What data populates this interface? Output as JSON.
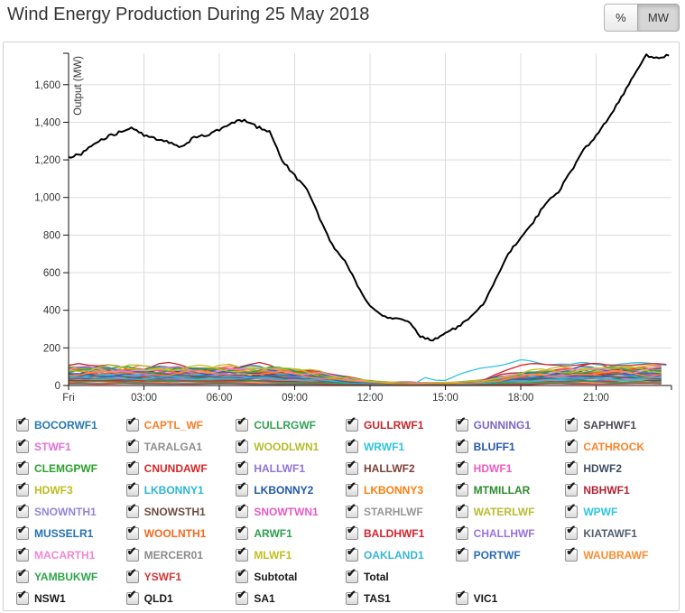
{
  "header": {
    "title": "Wind Energy Production During 25 May 2018",
    "unit_buttons": [
      {
        "label": "%",
        "active": false
      },
      {
        "label": "MW",
        "active": true
      }
    ]
  },
  "chart_data": {
    "type": "line",
    "title": "Wind Energy Production During 25 May 2018",
    "ylabel": "Output (MW)",
    "ylim": [
      0,
      1767
    ],
    "yticks": [
      0,
      200,
      400,
      600,
      800,
      1000,
      1200,
      1400,
      1600
    ],
    "xticks": [
      {
        "h": 0,
        "label": "Fri"
      },
      {
        "h": 3,
        "label": "03:00"
      },
      {
        "h": 6,
        "label": "06:00"
      },
      {
        "h": 9,
        "label": "09:00"
      },
      {
        "h": 12,
        "label": "12:00"
      },
      {
        "h": 15,
        "label": "15:00"
      },
      {
        "h": 18,
        "label": "18:00"
      },
      {
        "h": 21,
        "label": "21:00"
      }
    ],
    "grid": true,
    "axis_color": "#111111",
    "grid_color": "#dcdcdc",
    "total_series": {
      "name": "Total",
      "color": "#000000",
      "x_hours": [
        0,
        0.5,
        1,
        1.5,
        2,
        2.5,
        3,
        3.5,
        4,
        4.5,
        5,
        5.5,
        6,
        6.5,
        7,
        7.5,
        8,
        8.5,
        9,
        9.5,
        10,
        10.5,
        11,
        11.5,
        12,
        12.5,
        13,
        13.5,
        14,
        14.5,
        15,
        15.5,
        16,
        16.5,
        17,
        17.5,
        18,
        18.5,
        19,
        19.5,
        20,
        20.5,
        21,
        21.5,
        22,
        22.5,
        23,
        23.5,
        23.9
      ],
      "values_mw": [
        1215,
        1230,
        1290,
        1320,
        1345,
        1375,
        1330,
        1310,
        1295,
        1268,
        1320,
        1330,
        1360,
        1400,
        1410,
        1375,
        1350,
        1200,
        1115,
        1040,
        890,
        745,
        660,
        535,
        420,
        365,
        360,
        345,
        260,
        240,
        280,
        310,
        360,
        430,
        560,
        700,
        790,
        870,
        970,
        1030,
        1140,
        1250,
        1330,
        1420,
        1530,
        1650,
        1755,
        1745,
        1755
      ]
    },
    "band_profile_default": {
      "x_hours": [
        0,
        3,
        6,
        8,
        9,
        10,
        10.5,
        11,
        11.5,
        12,
        12.5,
        13,
        14,
        15,
        16,
        16.5,
        17,
        17.5,
        18,
        18.5,
        19,
        20,
        21,
        22,
        23.9
      ],
      "factors": [
        1,
        1,
        1,
        0.98,
        0.9,
        0.7,
        0.55,
        0.42,
        0.33,
        0.25,
        0.2,
        0.17,
        0.14,
        0.15,
        0.22,
        0.3,
        0.42,
        0.55,
        0.68,
        0.78,
        0.85,
        0.92,
        0.96,
        0.98,
        1
      ]
    },
    "farm_series": [
      {
        "name": "BOCORWF1",
        "peak_mw": 88
      },
      {
        "name": "CAPTL_WF",
        "peak_mw": 96
      },
      {
        "name": "CULLRGWF",
        "peak_mw": 24
      },
      {
        "name": "GULLRWF1",
        "peak_mw": 112
      },
      {
        "name": "GUNNING1",
        "peak_mw": 34
      },
      {
        "name": "SAPHWF1",
        "peak_mw": 58
      },
      {
        "name": "STWF1",
        "peak_mw": 44
      },
      {
        "name": "TARALGA1",
        "peak_mw": 80
      },
      {
        "name": "WOODLWN1",
        "peak_mw": 95
      },
      {
        "name": "WRWF1",
        "x_hours": [
          0,
          2,
          4,
          6,
          8,
          10,
          11,
          12,
          13,
          13.8,
          14.2,
          14.6,
          15,
          15.5,
          16,
          16.5,
          17,
          17.5,
          18,
          18.4,
          19,
          19.5,
          20,
          20.5,
          21,
          22,
          23,
          23.9
        ],
        "values_mw": [
          8,
          10,
          6,
          8,
          5,
          4,
          6,
          8,
          6,
          12,
          42,
          30,
          28,
          55,
          75,
          95,
          108,
          118,
          131,
          125,
          114,
          120,
          112,
          118,
          110,
          118,
          115,
          112
        ]
      },
      {
        "name": "BLUFF1",
        "peak_mw": 28
      },
      {
        "name": "CATHROCK",
        "peak_mw": 54
      },
      {
        "name": "CLEMGPWF",
        "peak_mw": 40
      },
      {
        "name": "CNUNDAWF",
        "peak_mw": 30
      },
      {
        "name": "HALLWF1",
        "peak_mw": 72
      },
      {
        "name": "HALLWF2",
        "peak_mw": 58
      },
      {
        "name": "HDWF1",
        "peak_mw": 86
      },
      {
        "name": "HDWF2",
        "peak_mw": 84
      },
      {
        "name": "HDWF3",
        "peak_mw": 90
      },
      {
        "name": "LKBONNY1",
        "peak_mw": 50
      },
      {
        "name": "LKBONNY2",
        "peak_mw": 68
      },
      {
        "name": "LKBONNY3",
        "peak_mw": 20
      },
      {
        "name": "MTMILLAR",
        "peak_mw": 44
      },
      {
        "name": "NBHWF1",
        "peak_mw": 62
      },
      {
        "name": "SNOWNTH1",
        "peak_mw": 76
      },
      {
        "name": "SNOWSTH1",
        "peak_mw": 70
      },
      {
        "name": "SNOWTWN1",
        "peak_mw": 82
      },
      {
        "name": "STARHLWF",
        "peak_mw": 34
      },
      {
        "name": "WATERLWF",
        "peak_mw": 104
      },
      {
        "name": "WPWF",
        "peak_mw": 56
      },
      {
        "name": "MUSSELR1",
        "peak_mw": 98
      },
      {
        "name": "WOOLNTH1",
        "peak_mw": 85
      },
      {
        "name": "ARWF1",
        "peak_mw": 94
      },
      {
        "name": "BALDHWF1",
        "x_hours": [
          0,
          2,
          4,
          6,
          8,
          9,
          10,
          11,
          12,
          13,
          14,
          15,
          16,
          16.5,
          17,
          17.5,
          18,
          18.5,
          19,
          19.5,
          20,
          21,
          21.5,
          22,
          23,
          23.9
        ],
        "values_mw": [
          25,
          28,
          22,
          26,
          24,
          20,
          12,
          6,
          4,
          3,
          8,
          6,
          10,
          25,
          60,
          90,
          108,
          112,
          108,
          112,
          110,
          112,
          108,
          112,
          110,
          112
        ]
      },
      {
        "name": "CHALLHWF",
        "peak_mw": 52
      },
      {
        "name": "KIATAWF1",
        "peak_mw": 46
      },
      {
        "name": "MACARTH1",
        "peak_mw": 93
      },
      {
        "name": "MERCER01",
        "peak_mw": 14
      },
      {
        "name": "MLWF1",
        "peak_mw": 100
      },
      {
        "name": "OAKLAND1",
        "peak_mw": 42
      },
      {
        "name": "PORTWF",
        "peak_mw": 64
      },
      {
        "name": "WAUBRAWF",
        "peak_mw": 73
      },
      {
        "name": "YAMBUKWF",
        "peak_mw": 22
      },
      {
        "name": "YSWF1",
        "peak_mw": 10
      }
    ]
  },
  "legend": {
    "items": [
      {
        "label": "BOCORWF1",
        "color": "#2577b5",
        "checked": true
      },
      {
        "label": "CAPTL_WF",
        "color": "#fb7d28",
        "checked": true
      },
      {
        "label": "CULLRGWF",
        "color": "#31a354",
        "checked": true
      },
      {
        "label": "GULLRWF1",
        "color": "#c9252d",
        "checked": true
      },
      {
        "label": "GUNNING1",
        "color": "#7a65c8",
        "checked": true
      },
      {
        "label": "SAPHWF1",
        "color": "#4d4a57",
        "checked": true
      },
      {
        "label": "STWF1",
        "color": "#e26fd8",
        "checked": true
      },
      {
        "label": "TARALGA1",
        "color": "#8e8e8e",
        "checked": true
      },
      {
        "label": "WOODLWN1",
        "color": "#b3bd2d",
        "checked": true
      },
      {
        "label": "WRWF1",
        "color": "#32c3e0",
        "checked": true
      },
      {
        "label": "BLUFF1",
        "color": "#2456a8",
        "checked": true
      },
      {
        "label": "CATHROCK",
        "color": "#fd8329",
        "checked": true
      },
      {
        "label": "CLEMGPWF",
        "color": "#2ca02c",
        "checked": true
      },
      {
        "label": "CNUNDAWF",
        "color": "#d62728",
        "checked": true
      },
      {
        "label": "HALLWF1",
        "color": "#8f75d8",
        "checked": true
      },
      {
        "label": "HALLWF2",
        "color": "#7b4138",
        "checked": true
      },
      {
        "label": "HDWF1",
        "color": "#ef59c2",
        "checked": true
      },
      {
        "label": "HDWF2",
        "color": "#3f4e63",
        "checked": true
      },
      {
        "label": "HDWF3",
        "color": "#bcbd22",
        "checked": true
      },
      {
        "label": "LKBONNY1",
        "color": "#2ab6d6",
        "checked": true
      },
      {
        "label": "LKBONNY2",
        "color": "#2258a6",
        "checked": true
      },
      {
        "label": "LKBONNY3",
        "color": "#ff7f0e",
        "checked": true
      },
      {
        "label": "MTMILLAR",
        "color": "#2e8b2e",
        "checked": true
      },
      {
        "label": "NBHWF1",
        "color": "#b22234",
        "checked": true
      },
      {
        "label": "SNOWNTH1",
        "color": "#9384de",
        "checked": true
      },
      {
        "label": "SNOWSTH1",
        "color": "#6e4b3f",
        "checked": true
      },
      {
        "label": "SNOWTWN1",
        "color": "#e75bc6",
        "checked": true
      },
      {
        "label": "STARHLWF",
        "color": "#979797",
        "checked": true
      },
      {
        "label": "WATERLWF",
        "color": "#b7bd30",
        "checked": true
      },
      {
        "label": "WPWF",
        "color": "#2fc4e4",
        "checked": true
      },
      {
        "label": "MUSSELR1",
        "color": "#2272b2",
        "checked": true
      },
      {
        "label": "WOOLNTH1",
        "color": "#f4691e",
        "checked": true
      },
      {
        "label": "ARWF1",
        "color": "#2f9e4f",
        "checked": true
      },
      {
        "label": "BALDHWF1",
        "color": "#d8232e",
        "checked": true
      },
      {
        "label": "CHALLHWF",
        "color": "#9673e3",
        "checked": true
      },
      {
        "label": "KIATAWF1",
        "color": "#525f70",
        "checked": true
      },
      {
        "label": "MACARTH1",
        "color": "#f287d2",
        "checked": true
      },
      {
        "label": "MERCER01",
        "color": "#8b8b8b",
        "checked": true
      },
      {
        "label": "MLWF1",
        "color": "#c0c020",
        "checked": true
      },
      {
        "label": "OAKLAND1",
        "color": "#38b6d8",
        "checked": true
      },
      {
        "label": "PORTWF",
        "color": "#2c6cb3",
        "checked": true
      },
      {
        "label": "WAUBRAWF",
        "color": "#fd8b2f",
        "checked": true
      },
      {
        "label": "YAMBUKWF",
        "color": "#2ea44b",
        "checked": true
      },
      {
        "label": "YSWF1",
        "color": "#d63434",
        "checked": true
      },
      {
        "label": "Subtotal",
        "color": "#1a1a1a",
        "checked": true
      },
      {
        "label": "Total",
        "color": "#111111",
        "checked": true
      },
      null,
      null,
      {
        "label": "NSW1",
        "color": "#1a1a1a",
        "checked": true
      },
      {
        "label": "QLD1",
        "color": "#1a1a1a",
        "checked": true
      },
      {
        "label": "SA1",
        "color": "#1a1a1a",
        "checked": true
      },
      {
        "label": "TAS1",
        "color": "#1a1a1a",
        "checked": true
      },
      {
        "label": "VIC1",
        "color": "#1a1a1a",
        "checked": true
      },
      null
    ]
  }
}
